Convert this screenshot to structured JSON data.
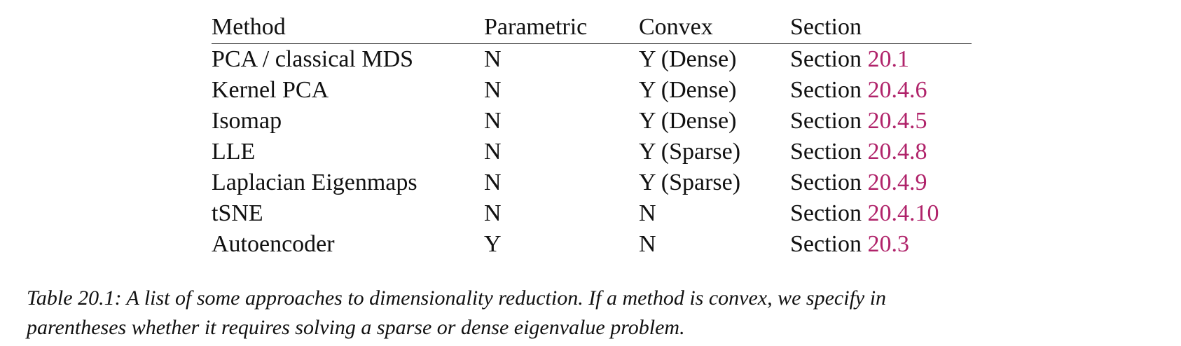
{
  "table": {
    "headers": {
      "method": "Method",
      "parametric": "Parametric",
      "convex": "Convex",
      "section": "Section"
    },
    "section_prefix": "Section",
    "rows": [
      {
        "method": "PCA / classical MDS",
        "parametric": "N",
        "convex": "Y (Dense)",
        "section_ref": "20.1"
      },
      {
        "method": "Kernel PCA",
        "parametric": "N",
        "convex": "Y (Dense)",
        "section_ref": "20.4.6"
      },
      {
        "method": "Isomap",
        "parametric": "N",
        "convex": "Y (Dense)",
        "section_ref": "20.4.5"
      },
      {
        "method": "LLE",
        "parametric": "N",
        "convex": "Y (Sparse)",
        "section_ref": "20.4.8"
      },
      {
        "method": "Laplacian Eigenmaps",
        "parametric": "N",
        "convex": "Y (Sparse)",
        "section_ref": "20.4.9"
      },
      {
        "method": "tSNE",
        "parametric": "N",
        "convex": "N",
        "section_ref": "20.4.10"
      },
      {
        "method": "Autoencoder",
        "parametric": "Y",
        "convex": "N",
        "section_ref": "20.3"
      }
    ]
  },
  "caption": {
    "line1": "Table 20.1: A list of some approaches to dimensionality reduction. If a method is convex, we specify in",
    "line2": "parentheses whether it requires solving a sparse or dense eigenvalue problem."
  },
  "colors": {
    "text": "#111111",
    "link": "#b0236a"
  }
}
